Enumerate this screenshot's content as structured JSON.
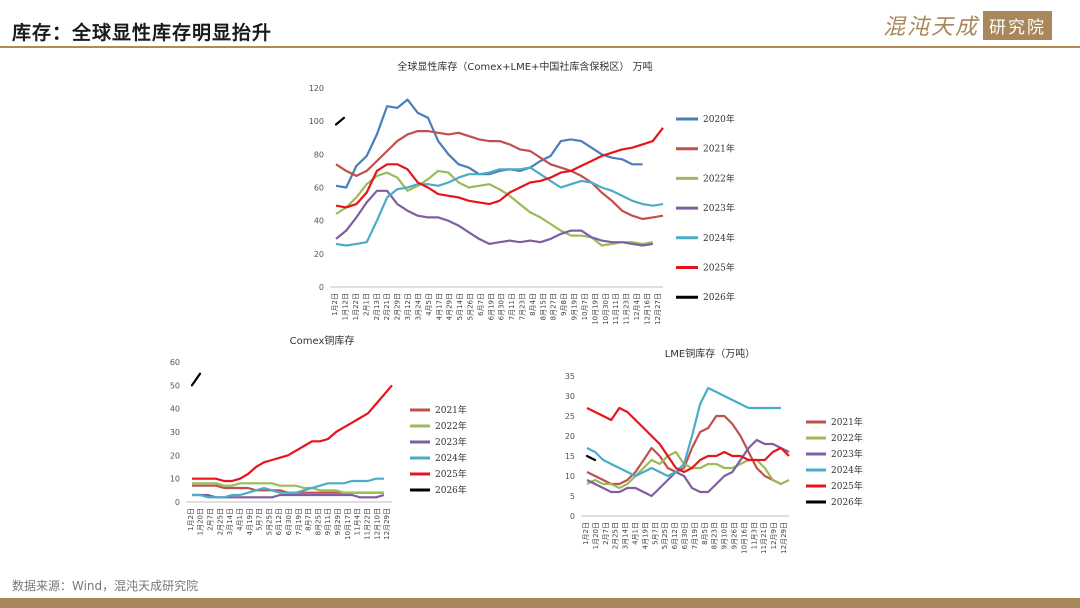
{
  "header": {
    "title": "库存：全球显性库存明显抬升",
    "logo_script": "混沌天成",
    "logo_box": "研究院"
  },
  "footer": {
    "source": "数据来源：Wind，混沌天成研究院"
  },
  "colors": {
    "2020年": "#4a7ebb",
    "2021年": "#c0504d",
    "2022年": "#9bbb59",
    "2023年": "#7f5fa0",
    "2024年": "#4bacc6",
    "2025年": "#e8141b",
    "2026年": "#000000"
  },
  "chart_data": [
    {
      "id": "global",
      "type": "line",
      "title": "全球显性库存（Comex+LME+中国社库含保税区） 万吨",
      "ylim": [
        0,
        120
      ],
      "yticks": [
        0,
        20,
        40,
        60,
        80,
        100,
        120
      ],
      "x_labels": [
        "1月2日",
        "1月12日",
        "1月22日",
        "2月1日",
        "2月13日",
        "2月21日",
        "2月29日",
        "3月12日",
        "3月24日",
        "4月5日",
        "4月17日",
        "4月29日",
        "5月14日",
        "5月26日",
        "6月7日",
        "6月19日",
        "6月30日",
        "7月11日",
        "7月23日",
        "8月4日",
        "8月15日",
        "8月27日",
        "9月8日",
        "9月19日",
        "10月7日",
        "10月19日",
        "10月30日",
        "11月11日",
        "11月23日",
        "12月4日",
        "12月16日",
        "12月27日"
      ],
      "series": [
        {
          "name": "2020年",
          "values": [
            61,
            60,
            73,
            79,
            92,
            109,
            108,
            113,
            105,
            102,
            88,
            80,
            74,
            72,
            68,
            68,
            70,
            71,
            70,
            72,
            76,
            79,
            88,
            89,
            88,
            84,
            80,
            78,
            77,
            74,
            74
          ]
        },
        {
          "name": "2021年",
          "values": [
            74,
            70,
            67,
            70,
            76,
            82,
            88,
            92,
            94,
            94,
            93,
            92,
            93,
            91,
            89,
            88,
            88,
            86,
            83,
            82,
            78,
            74,
            72,
            70,
            67,
            63,
            57,
            52,
            46,
            43,
            41,
            42,
            43
          ]
        },
        {
          "name": "2022年",
          "values": [
            44,
            48,
            54,
            62,
            67,
            69,
            66,
            58,
            61,
            65,
            70,
            69,
            63,
            60,
            61,
            62,
            59,
            55,
            50,
            45,
            42,
            38,
            34,
            31,
            31,
            30,
            25,
            26,
            27,
            27,
            26,
            27
          ]
        },
        {
          "name": "2023年",
          "values": [
            29,
            34,
            42,
            51,
            58,
            58,
            50,
            46,
            43,
            42,
            42,
            40,
            37,
            33,
            29,
            26,
            27,
            28,
            27,
            28,
            27,
            29,
            32,
            34,
            34,
            30,
            28,
            27,
            27,
            26,
            25,
            26
          ]
        },
        {
          "name": "2024年",
          "values": [
            26,
            25,
            26,
            27,
            40,
            54,
            59,
            60,
            62,
            62,
            61,
            63,
            66,
            68,
            68,
            69,
            71,
            71,
            71,
            72,
            68,
            64,
            60,
            62,
            64,
            63,
            60,
            58,
            55,
            52,
            50,
            49,
            50
          ]
        },
        {
          "name": "2025年",
          "values": [
            49,
            48,
            50,
            57,
            70,
            74,
            74,
            71,
            63,
            60,
            56,
            55,
            54,
            52,
            51,
            50,
            52,
            57,
            60,
            63,
            64,
            66,
            69,
            70,
            73,
            76,
            79,
            81,
            83,
            84,
            86,
            88,
            96
          ]
        },
        {
          "name": "2026年",
          "values": [
            98,
            102
          ]
        }
      ]
    },
    {
      "id": "comex",
      "type": "line",
      "title": "Comex铜库存",
      "ylim": [
        0,
        60
      ],
      "yticks": [
        0,
        10,
        20,
        30,
        40,
        50,
        60
      ],
      "x_labels": [
        "1月2日",
        "1月20日",
        "2月7日",
        "2月25日",
        "3月14日",
        "4月1日",
        "4月19日",
        "5月7日",
        "5月25日",
        "6月12日",
        "6月30日",
        "7月19日",
        "8月7日",
        "8月25日",
        "9月11日",
        "9月29日",
        "10月17日",
        "11月4日",
        "11月22日",
        "12月10日",
        "12月29日"
      ],
      "series": [
        {
          "name": "2021年",
          "values": [
            7,
            7,
            7,
            7,
            6,
            6,
            6,
            6,
            5,
            5,
            5,
            5,
            4,
            4,
            4,
            4,
            4,
            4,
            4,
            4,
            4,
            4,
            4,
            4,
            4
          ]
        },
        {
          "name": "2022年",
          "values": [
            8,
            8,
            8,
            8,
            7,
            7,
            8,
            8,
            8,
            8,
            8,
            7,
            7,
            7,
            6,
            6,
            5,
            5,
            5,
            4,
            4,
            4,
            4,
            4,
            4
          ]
        },
        {
          "name": "2023年",
          "values": [
            3,
            3,
            3,
            2,
            2,
            2,
            2,
            2,
            2,
            2,
            2,
            3,
            3,
            3,
            3,
            3,
            3,
            3,
            3,
            3,
            3,
            2,
            2,
            2,
            3
          ]
        },
        {
          "name": "2024年",
          "values": [
            3,
            3,
            2,
            2,
            2,
            3,
            3,
            4,
            5,
            6,
            5,
            4,
            4,
            4,
            5,
            6,
            7,
            8,
            8,
            8,
            9,
            9,
            9,
            10,
            10
          ]
        },
        {
          "name": "2025年",
          "values": [
            10,
            10,
            10,
            10,
            9,
            9,
            10,
            12,
            15,
            17,
            18,
            19,
            20,
            22,
            24,
            26,
            26,
            27,
            30,
            32,
            34,
            36,
            38,
            42,
            46,
            50
          ]
        },
        {
          "name": "2026年",
          "values": [
            50,
            55
          ]
        }
      ]
    },
    {
      "id": "lme",
      "type": "line",
      "title": "LME铜库存（万吨）",
      "ylim": [
        0,
        35
      ],
      "yticks": [
        0,
        5,
        10,
        15,
        20,
        25,
        30,
        35
      ],
      "x_labels": [
        "1月2日",
        "1月20日",
        "2月7日",
        "2月25日",
        "3月14日",
        "4月1日",
        "4月19日",
        "5月7日",
        "5月25日",
        "6月12日",
        "6月30日",
        "7月19日",
        "8月5日",
        "8月23日",
        "9月10日",
        "9月26日",
        "10月16日",
        "11月3日",
        "11月21日",
        "12月9日",
        "12月29日"
      ],
      "series": [
        {
          "name": "2021年",
          "values": [
            11,
            10,
            9,
            8,
            8,
            9,
            11,
            14,
            17,
            15,
            12,
            11,
            12,
            17,
            21,
            22,
            25,
            25,
            23,
            20,
            16,
            12,
            10,
            9,
            8
          ]
        },
        {
          "name": "2022年",
          "values": [
            8,
            9,
            8,
            8,
            7,
            8,
            10,
            12,
            14,
            13,
            15,
            16,
            13,
            12,
            12,
            13,
            13,
            12,
            12,
            13,
            14,
            14,
            12,
            9,
            8,
            9
          ]
        },
        {
          "name": "2023年",
          "values": [
            9,
            8,
            7,
            6,
            6,
            7,
            7,
            6,
            5,
            7,
            9,
            11,
            10,
            7,
            6,
            6,
            8,
            10,
            11,
            14,
            17,
            19,
            18,
            18,
            17,
            16
          ]
        },
        {
          "name": "2024年",
          "values": [
            17,
            16,
            14,
            13,
            12,
            11,
            10,
            11,
            12,
            11,
            10,
            11,
            13,
            20,
            28,
            32,
            31,
            30,
            29,
            28,
            27,
            27,
            27,
            27,
            27
          ]
        },
        {
          "name": "2025年",
          "values": [
            27,
            26,
            25,
            24,
            27,
            26,
            24,
            22,
            20,
            18,
            15,
            12,
            11,
            12,
            14,
            15,
            15,
            16,
            15,
            15,
            14,
            14,
            14,
            16,
            17,
            15
          ]
        },
        {
          "name": "2026年",
          "values": [
            15,
            14
          ]
        }
      ]
    }
  ]
}
